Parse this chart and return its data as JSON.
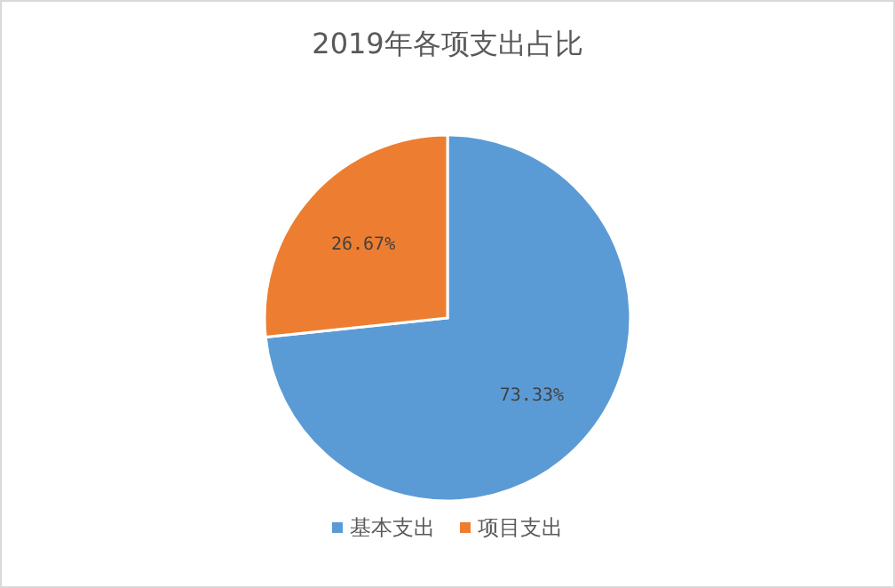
{
  "chart_data": {
    "type": "pie",
    "title": "2019年各项支出占比",
    "categories": [
      "基本支出",
      "项目支出"
    ],
    "values": [
      73.33,
      26.67
    ],
    "value_labels": [
      "73.33%",
      "26.67%"
    ],
    "colors": [
      "#5b9bd5",
      "#ed7d31"
    ],
    "legend": "bottom"
  }
}
